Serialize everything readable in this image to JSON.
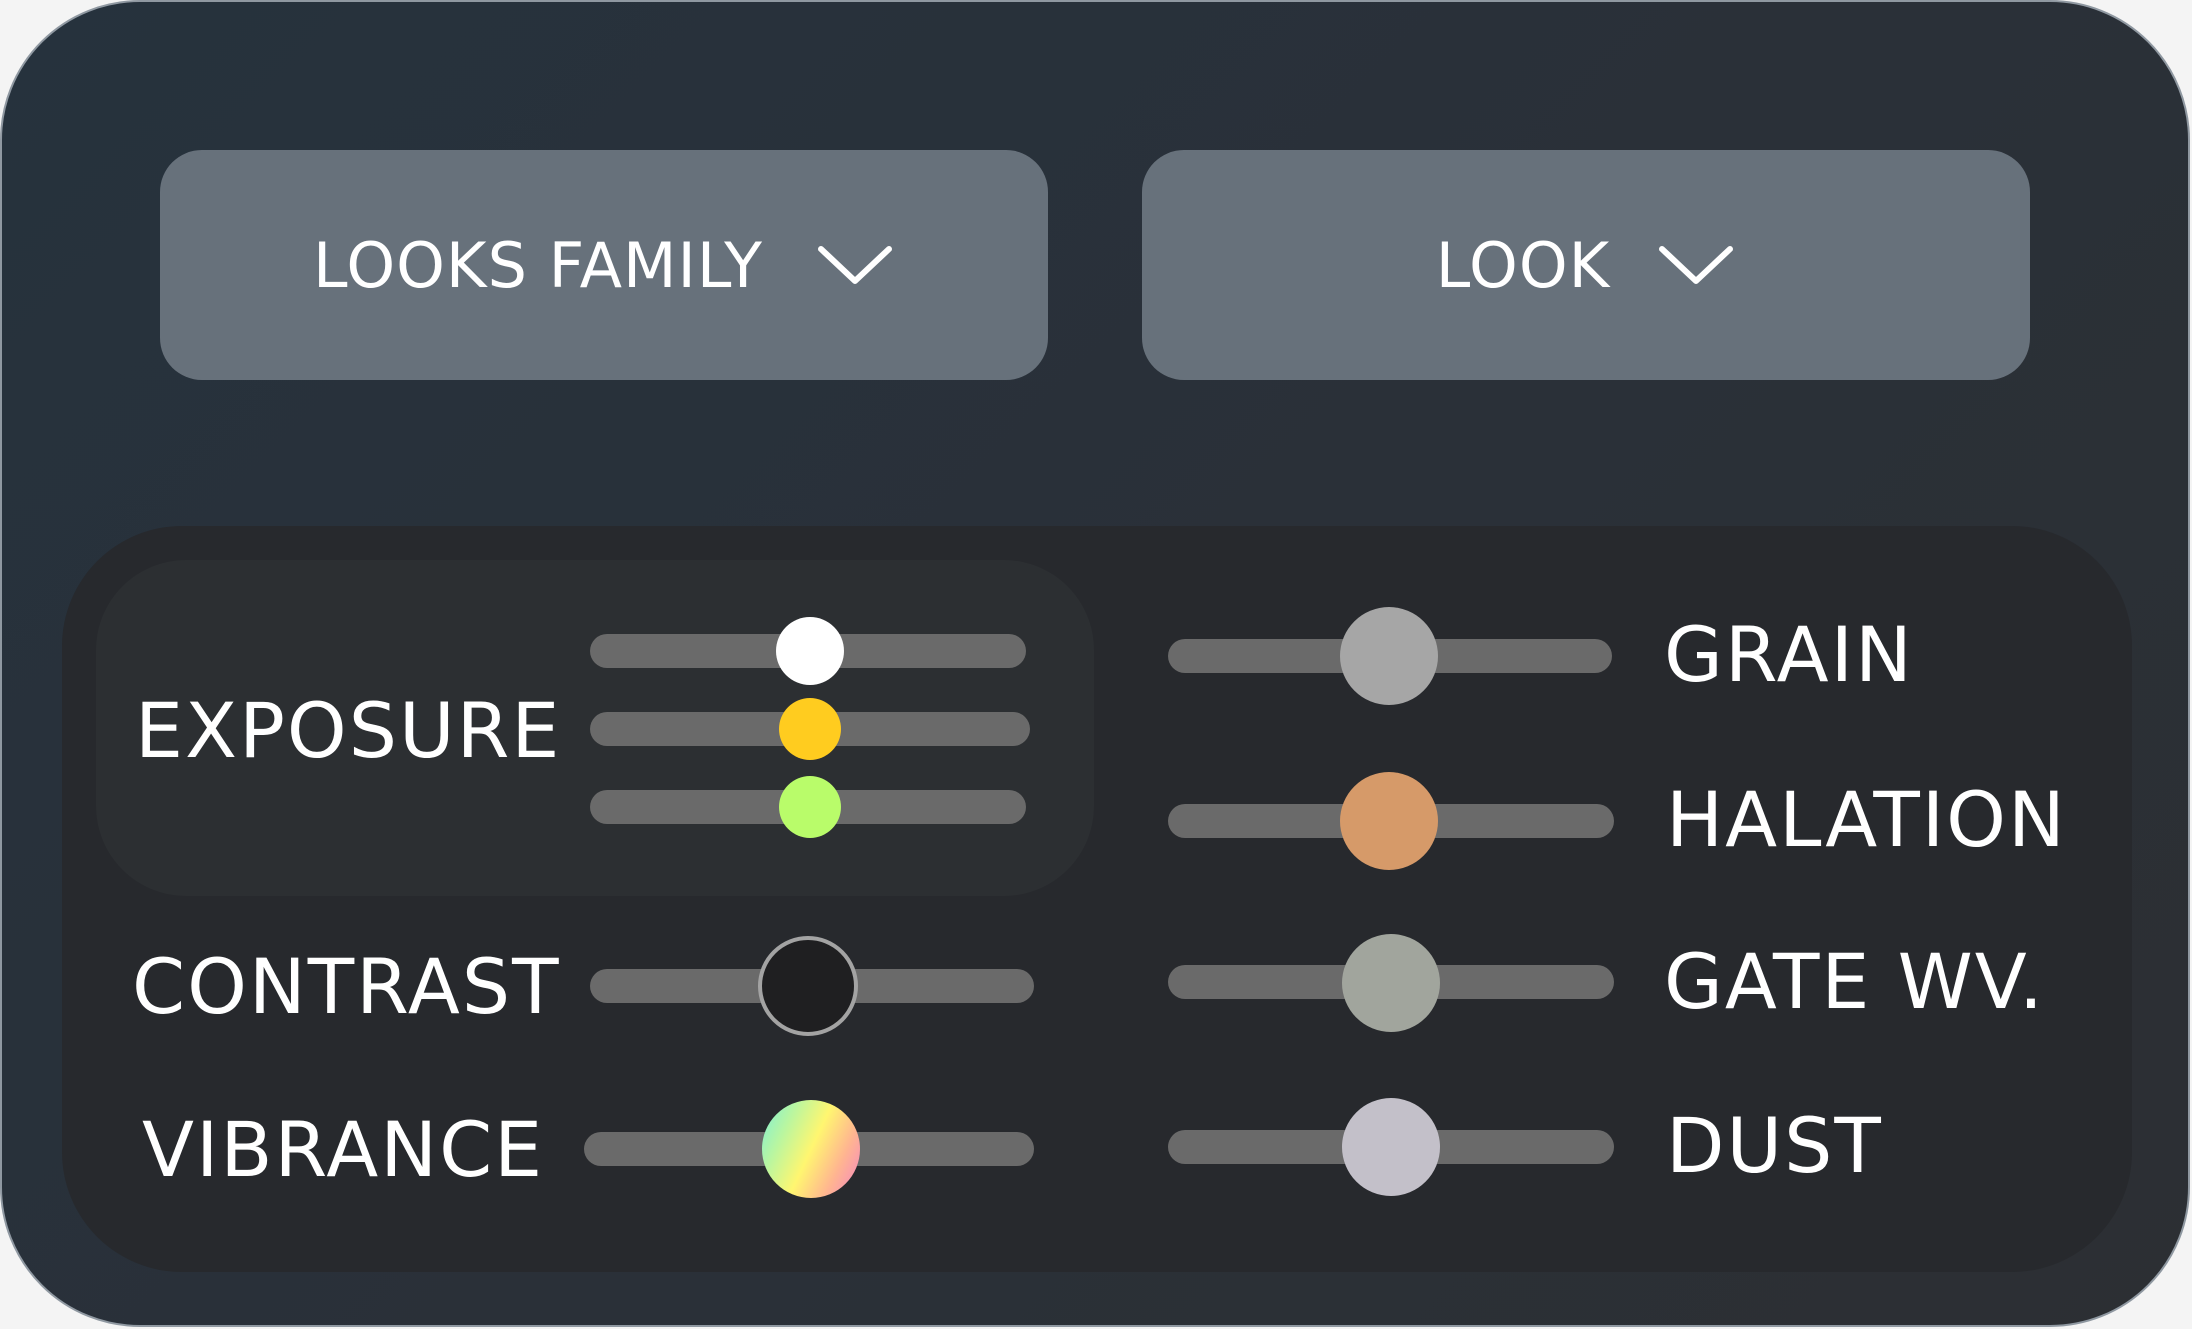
{
  "dropdowns": {
    "looks_family": {
      "label": "LOOKS FAMILY",
      "icon": "chevron-down-icon"
    },
    "look": {
      "label": "LOOK",
      "icon": "chevron-down-icon"
    }
  },
  "controls": {
    "exposure": {
      "label": "EXPOSURE",
      "sliders": [
        {
          "name": "exposure-1",
          "value": 0.5,
          "color": "#ffffff"
        },
        {
          "name": "exposure-2",
          "value": 0.5,
          "color": "#ffcc1f"
        },
        {
          "name": "exposure-3",
          "value": 0.5,
          "color": "#b9fc6a"
        }
      ]
    },
    "contrast": {
      "label": "CONTRAST",
      "value": 0.5,
      "color": "#1f1f21"
    },
    "vibrance": {
      "label": "VIBRANCE",
      "value": 0.5,
      "color": "rainbow-gradient"
    },
    "grain": {
      "label": "GRAIN",
      "value": 0.5,
      "color": "#a6a6a6"
    },
    "halation": {
      "label": "HALATION",
      "value": 0.5,
      "color": "#d69a69"
    },
    "gate_weave": {
      "label": "GATE WV.",
      "value": 0.5,
      "color": "#a1a59d"
    },
    "dust": {
      "label": "DUST",
      "value": 0.5,
      "color": "#c3c0c9"
    }
  },
  "colors": {
    "frame_background": "#27313b",
    "dropdown_background": "#67717b",
    "panel_background": "#27292d",
    "track": "#6a6a6a"
  }
}
